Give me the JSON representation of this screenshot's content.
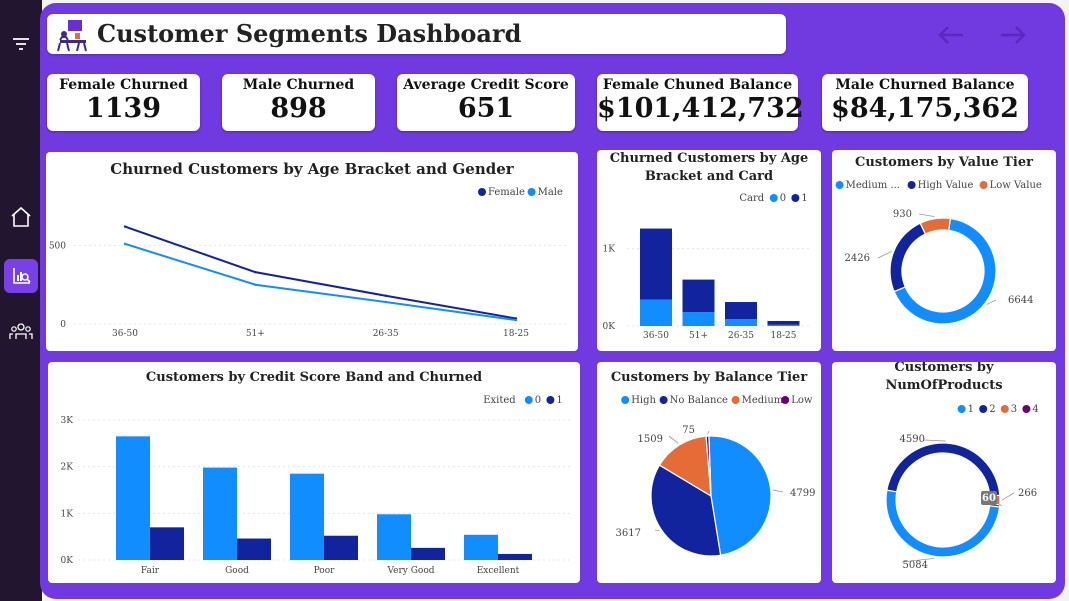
{
  "app": {
    "title": "Customer Segments Dashboard"
  },
  "icons": {
    "filter": "filter-icon",
    "home": "home-icon",
    "analysis": "analysis-icon",
    "people": "people-icon",
    "logo": "dashboard-logo-icon",
    "back": "arrow-left-icon",
    "forward": "arrow-right-icon"
  },
  "colors": {
    "canvas": "#7139e0",
    "sidebar": "#211530",
    "dark_blue": "#12239e",
    "light_blue": "#118dff",
    "orange": "#e66c37",
    "purple": "#6b007b"
  },
  "kpis": [
    {
      "label": "Female Churned",
      "value": "1139"
    },
    {
      "label": "Male Churned",
      "value": "898"
    },
    {
      "label": "Average Credit Score",
      "value": "651"
    },
    {
      "label": "Female Chuned Balance",
      "value": "$101,412,732"
    },
    {
      "label": "Male Churned Balance",
      "value": "$84,175,362"
    }
  ],
  "chart_data": [
    {
      "id": "age_gender",
      "type": "line",
      "title": "Churned Customers by Age Bracket and Gender",
      "categories": [
        "36-50",
        "51+",
        "26-35",
        "18-25"
      ],
      "series": [
        {
          "name": "Female",
          "color": "#12239e",
          "values": [
            620,
            330,
            180,
            35
          ]
        },
        {
          "name": "Male",
          "color": "#118dff",
          "values": [
            510,
            250,
            140,
            25
          ]
        }
      ],
      "y_ticks": [
        {
          "v": 0,
          "label": "0"
        },
        {
          "v": 500,
          "label": "500"
        }
      ],
      "ylim": [
        0,
        700
      ]
    },
    {
      "id": "age_card",
      "type": "bar",
      "stacked": true,
      "title": [
        "Churned Customers by Age",
        "Bracket and Card"
      ],
      "legend_title": "Card",
      "categories": [
        "36-50",
        "51+",
        "26-35",
        "18-25"
      ],
      "series": [
        {
          "name": "0",
          "color": "#118dff",
          "values": [
            340,
            180,
            90,
            15
          ]
        },
        {
          "name": "1",
          "color": "#12239e",
          "values": [
            920,
            420,
            220,
            50
          ]
        }
      ],
      "y_ticks": [
        {
          "v": 0,
          "label": "0K"
        },
        {
          "v": 1000,
          "label": "1K"
        }
      ],
      "ylim": [
        0,
        1500
      ]
    },
    {
      "id": "value_tier",
      "type": "pie",
      "donut": true,
      "title": "Customers by Value Tier",
      "slices": [
        {
          "name": "Medium ...",
          "value": 6644,
          "label": "6644",
          "color": "#118dff"
        },
        {
          "name": "High Value",
          "value": 2426,
          "label": "2426",
          "color": "#12239e"
        },
        {
          "name": "Low Value",
          "value": 930,
          "label": "930",
          "color": "#e66c37"
        }
      ]
    },
    {
      "id": "credit_band",
      "type": "bar",
      "title": "Customers by Credit Score Band and Churned",
      "legend_title": "Exited",
      "categories": [
        "Fair",
        "Good",
        "Poor",
        "Very Good",
        "Excellent"
      ],
      "series": [
        {
          "name": "0",
          "color": "#118dff",
          "values": [
            2650,
            1980,
            1850,
            980,
            540
          ]
        },
        {
          "name": "1",
          "color": "#12239e",
          "values": [
            700,
            460,
            520,
            260,
            130
          ]
        }
      ],
      "y_ticks": [
        {
          "v": 0,
          "label": "0K"
        },
        {
          "v": 1000,
          "label": "1K"
        },
        {
          "v": 2000,
          "label": "2K"
        },
        {
          "v": 3000,
          "label": "3K"
        }
      ],
      "ylim": [
        0,
        3000
      ]
    },
    {
      "id": "balance_tier",
      "type": "pie",
      "donut": false,
      "title": "Customers by Balance Tier",
      "slices": [
        {
          "name": "High",
          "value": 4799,
          "label": "4799",
          "color": "#118dff"
        },
        {
          "name": "No Balance",
          "value": 3617,
          "label": "3617",
          "color": "#12239e"
        },
        {
          "name": "Medium",
          "value": 1509,
          "label": "1509",
          "color": "#e66c37"
        },
        {
          "name": "Low",
          "value": 75,
          "label": "75",
          "color": "#6b007b"
        }
      ]
    },
    {
      "id": "num_products",
      "type": "pie",
      "donut": true,
      "title": [
        "Customers by",
        "NumOfProducts"
      ],
      "slices": [
        {
          "name": "1",
          "value": 5084,
          "label": "5084",
          "color": "#118dff"
        },
        {
          "name": "2",
          "value": 4590,
          "label": "4590",
          "color": "#12239e"
        },
        {
          "name": "3",
          "value": 266,
          "label": "266",
          "color": "#e66c37"
        },
        {
          "name": "4",
          "value": 60,
          "label": "60",
          "color": "#6b007b"
        }
      ]
    }
  ]
}
